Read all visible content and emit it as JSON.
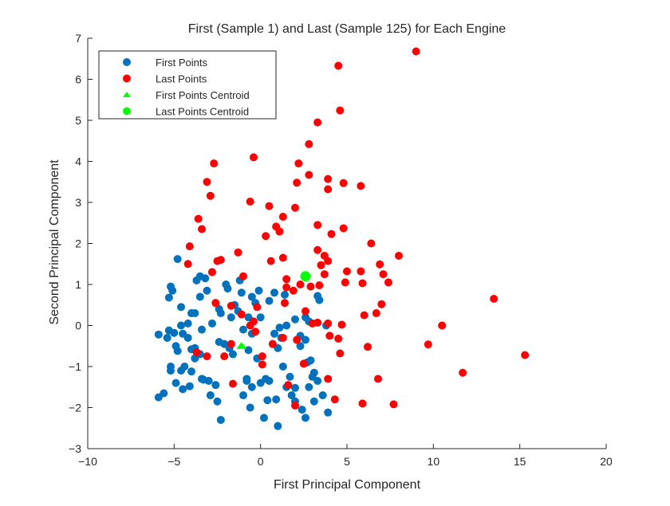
{
  "chart_data": {
    "type": "scatter",
    "title": "First (Sample 1) and Last (Sample 125) for Each Engine",
    "xlabel": "First Principal Component",
    "ylabel": "Second Principal Component",
    "xlim": [
      -10,
      20
    ],
    "ylim": [
      -3,
      7
    ],
    "xticks": [
      -10,
      -5,
      0,
      5,
      10,
      15,
      20
    ],
    "yticks": [
      -3,
      -2,
      -1,
      0,
      1,
      2,
      3,
      4,
      5,
      6,
      7
    ],
    "xtick_labels": [
      "−10",
      "−5",
      "0",
      "5",
      "10",
      "15",
      "20"
    ],
    "ytick_labels": [
      "−3",
      "−2",
      "−1",
      "0",
      "1",
      "2",
      "3",
      "4",
      "5",
      "6",
      "7"
    ],
    "grid": false,
    "legend_position": "top-left",
    "series": [
      {
        "name": "First Points",
        "marker": "circle",
        "color": "#0072BD",
        "points": [
          [
            -4.8,
            1.62
          ],
          [
            -5.2,
            0.95
          ],
          [
            -5.1,
            0.85
          ],
          [
            -5.3,
            0.68
          ],
          [
            -4.6,
            0.45
          ],
          [
            -4.0,
            0.3
          ],
          [
            -4.2,
            0.05
          ],
          [
            -4.6,
            0.0
          ],
          [
            -5.0,
            -0.18
          ],
          [
            -5.3,
            -0.12
          ],
          [
            -5.4,
            -0.3
          ],
          [
            -5.9,
            -0.22
          ],
          [
            -4.9,
            -0.5
          ],
          [
            -4.5,
            -0.2
          ],
          [
            -4.8,
            -0.62
          ],
          [
            -4.0,
            -0.58
          ],
          [
            -3.8,
            -0.8
          ],
          [
            -3.5,
            -0.7
          ],
          [
            -4.4,
            -1.0
          ],
          [
            -5.2,
            -1.0
          ],
          [
            -5.2,
            -1.1
          ],
          [
            -4.6,
            -1.1
          ],
          [
            -4.9,
            -1.4
          ],
          [
            -4.5,
            -1.55
          ],
          [
            -4.1,
            -1.48
          ],
          [
            -5.6,
            -1.65
          ],
          [
            -5.9,
            -1.75
          ],
          [
            -4.0,
            -1.12
          ],
          [
            -3.4,
            -1.3
          ],
          [
            -3.0,
            -1.35
          ],
          [
            -2.9,
            -1.7
          ],
          [
            -2.6,
            -1.45
          ],
          [
            -3.7,
            1.1
          ],
          [
            -3.5,
            1.2
          ],
          [
            -3.2,
            1.15
          ],
          [
            -3.5,
            0.7
          ],
          [
            -3.8,
            0.3
          ],
          [
            -3.4,
            -0.1
          ],
          [
            -2.8,
            0.05
          ],
          [
            -2.4,
            0.4
          ],
          [
            -2.3,
            0.3
          ],
          [
            -2.0,
            1.0
          ],
          [
            -2.4,
            -0.4
          ],
          [
            -2.1,
            -0.45
          ],
          [
            -1.8,
            -0.55
          ],
          [
            -1.7,
            0.2
          ],
          [
            -1.5,
            0.5
          ],
          [
            -1.3,
            0.35
          ],
          [
            -1.1,
            0.8
          ],
          [
            -1.2,
            1.1
          ],
          [
            -1.0,
            -0.1
          ],
          [
            -0.7,
            0.2
          ],
          [
            -0.5,
            0.7
          ],
          [
            -0.3,
            0.55
          ],
          [
            -0.1,
            0.85
          ],
          [
            0.0,
            0.2
          ],
          [
            -0.5,
            -0.2
          ],
          [
            -0.7,
            -0.6
          ],
          [
            -0.2,
            -0.8
          ],
          [
            0.3,
            -1.3
          ],
          [
            0.5,
            -1.35
          ],
          [
            0.0,
            -1.4
          ],
          [
            -0.5,
            -1.5
          ],
          [
            -0.8,
            -1.3
          ],
          [
            -1.0,
            -1.7
          ],
          [
            -0.6,
            -2.0
          ],
          [
            0.2,
            -2.25
          ],
          [
            0.4,
            -1.82
          ],
          [
            0.9,
            -1.8
          ],
          [
            1.0,
            -2.45
          ],
          [
            1.8,
            -1.7
          ],
          [
            2.0,
            -1.85
          ],
          [
            2.4,
            -2.05
          ],
          [
            2.6,
            -2.25
          ],
          [
            2.8,
            -1.5
          ],
          [
            3.0,
            -1.25
          ],
          [
            3.3,
            -1.35
          ],
          [
            3.6,
            -1.7
          ],
          [
            3.1,
            -1.85
          ],
          [
            3.9,
            -2.12
          ],
          [
            1.5,
            -1.5
          ],
          [
            1.7,
            -1.25
          ],
          [
            1.3,
            -1.0
          ],
          [
            1.0,
            -0.55
          ],
          [
            0.8,
            -0.2
          ],
          [
            1.1,
            -0.05
          ],
          [
            1.5,
            0.0
          ],
          [
            2.0,
            0.15
          ],
          [
            2.3,
            -0.25
          ],
          [
            2.6,
            -0.35
          ],
          [
            2.7,
            -0.9
          ],
          [
            2.9,
            -0.85
          ],
          [
            3.1,
            -1.15
          ],
          [
            2.3,
            -0.5
          ],
          [
            2.8,
            0.1
          ],
          [
            2.6,
            0.2
          ],
          [
            3.3,
            0.72
          ],
          [
            3.4,
            0.62
          ],
          [
            3.8,
            0.0
          ],
          [
            2.0,
            -1.52
          ],
          [
            0.5,
            0.6
          ],
          [
            0.8,
            0.8
          ],
          [
            1.4,
            0.75
          ],
          [
            1.2,
            -0.3
          ],
          [
            -2.5,
            -1.85
          ],
          [
            -2.3,
            -2.3
          ],
          [
            -1.6,
            -0.7
          ],
          [
            -2.8,
            1.3
          ],
          [
            -1.9,
            0.9
          ],
          [
            -0.8,
            -1.35
          ],
          [
            -3.3,
            -1.32
          ],
          [
            -3.1,
            0.85
          ],
          [
            -3.8,
            -0.55
          ],
          [
            -4.2,
            -0.3
          ]
        ]
      },
      {
        "name": "Last Points",
        "marker": "circle",
        "color": "#FF0000",
        "points": [
          [
            9.0,
            6.68
          ],
          [
            4.5,
            6.33
          ],
          [
            4.6,
            5.24
          ],
          [
            3.3,
            4.95
          ],
          [
            2.8,
            4.42
          ],
          [
            -0.4,
            4.1
          ],
          [
            2.2,
            3.95
          ],
          [
            -2.7,
            3.95
          ],
          [
            2.1,
            3.48
          ],
          [
            2.8,
            3.67
          ],
          [
            -3.1,
            3.5
          ],
          [
            3.9,
            3.57
          ],
          [
            4.8,
            3.47
          ],
          [
            5.8,
            3.4
          ],
          [
            3.9,
            3.32
          ],
          [
            -2.9,
            3.16
          ],
          [
            -0.6,
            3.02
          ],
          [
            0.5,
            2.91
          ],
          [
            2.0,
            2.87
          ],
          [
            1.3,
            2.65
          ],
          [
            -3.6,
            2.6
          ],
          [
            0.9,
            2.41
          ],
          [
            1.1,
            2.29
          ],
          [
            3.3,
            2.45
          ],
          [
            -3.4,
            2.35
          ],
          [
            0.3,
            2.18
          ],
          [
            4.1,
            2.23
          ],
          [
            4.8,
            2.37
          ],
          [
            6.4,
            2.0
          ],
          [
            -4.1,
            1.93
          ],
          [
            3.3,
            1.84
          ],
          [
            3.7,
            1.7
          ],
          [
            8.0,
            1.7
          ],
          [
            0.6,
            1.57
          ],
          [
            1.3,
            1.65
          ],
          [
            3.9,
            1.57
          ],
          [
            -4.2,
            1.5
          ],
          [
            -2.5,
            1.57
          ],
          [
            -2.3,
            1.6
          ],
          [
            -1.3,
            1.78
          ],
          [
            3.5,
            1.47
          ],
          [
            5.8,
            1.32
          ],
          [
            6.9,
            1.49
          ],
          [
            7.1,
            1.25
          ],
          [
            -2.8,
            1.3
          ],
          [
            -1.0,
            1.2
          ],
          [
            3.7,
            1.25
          ],
          [
            5.0,
            1.32
          ],
          [
            1.5,
            1.13
          ],
          [
            2.3,
            1.0
          ],
          [
            2.9,
            0.95
          ],
          [
            3.4,
            0.98
          ],
          [
            4.9,
            1.05
          ],
          [
            5.9,
            1.03
          ],
          [
            7.4,
            1.05
          ],
          [
            1.5,
            0.93
          ],
          [
            13.5,
            0.65
          ],
          [
            -2.6,
            0.55
          ],
          [
            -1.7,
            0.48
          ],
          [
            1.4,
            0.55
          ],
          [
            2.6,
            0.35
          ],
          [
            7.0,
            0.52
          ],
          [
            6.7,
            0.3
          ],
          [
            6.0,
            0.25
          ],
          [
            -1.1,
            0.27
          ],
          [
            -0.4,
            0.1
          ],
          [
            3.3,
            0.07
          ],
          [
            3.9,
            0.05
          ],
          [
            10.5,
            0.0
          ],
          [
            4.7,
            0.02
          ],
          [
            -0.3,
            -0.15
          ],
          [
            1.3,
            -0.3
          ],
          [
            2.1,
            -0.35
          ],
          [
            4.0,
            -0.25
          ],
          [
            4.5,
            -0.32
          ],
          [
            -1.7,
            -0.45
          ],
          [
            -2.1,
            -0.75
          ],
          [
            0.7,
            -0.45
          ],
          [
            -3.7,
            -0.65
          ],
          [
            -3.1,
            -0.75
          ],
          [
            0.1,
            -0.75
          ],
          [
            0.1,
            -0.95
          ],
          [
            4.6,
            -0.68
          ],
          [
            6.2,
            -0.52
          ],
          [
            9.7,
            -0.46
          ],
          [
            15.3,
            -0.72
          ],
          [
            2.5,
            -0.93
          ],
          [
            -1.6,
            -1.42
          ],
          [
            1.6,
            -1.45
          ],
          [
            3.9,
            -1.3
          ],
          [
            6.8,
            -1.3
          ],
          [
            11.7,
            -1.15
          ],
          [
            4.3,
            -1.8
          ],
          [
            5.9,
            -1.9
          ],
          [
            7.7,
            -1.92
          ],
          [
            2.0,
            -1.95
          ],
          [
            -0.6,
            0.0
          ],
          [
            -0.2,
            0.45
          ],
          [
            1.9,
            0.85
          ],
          [
            3.0,
            0.05
          ]
        ]
      },
      {
        "name": "First Points Centroid",
        "marker": "triangle",
        "color": "#00FF00",
        "points": [
          [
            -1.1,
            -0.5
          ]
        ]
      },
      {
        "name": "Last Points Centroid",
        "marker": "circle",
        "color": "#00FF00",
        "points": [
          [
            2.6,
            1.2
          ]
        ]
      }
    ]
  }
}
